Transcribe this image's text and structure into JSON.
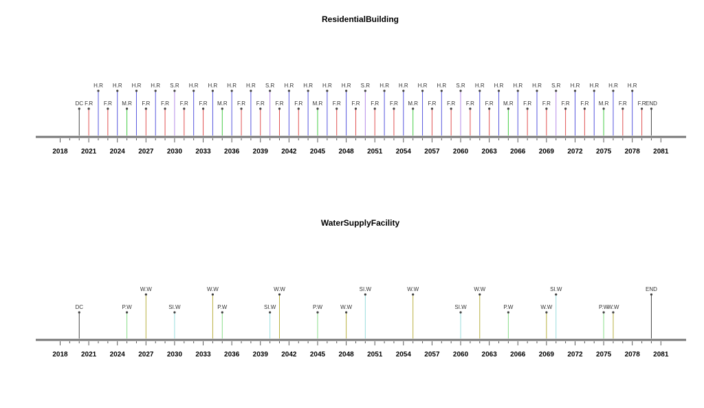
{
  "chart_data": [
    {
      "type": "timeline",
      "title": "ResidentialBuilding",
      "xlim": [
        2016,
        2083
      ],
      "tick_labels": [
        "2018",
        "2021",
        "2024",
        "2027",
        "2030",
        "2033",
        "2036",
        "2039",
        "2042",
        "2045",
        "2048",
        "2051",
        "2054",
        "2057",
        "2060",
        "2063",
        "2066",
        "2069",
        "2072",
        "2075",
        "2078",
        "2081"
      ],
      "events": [
        {
          "year": 2020,
          "label": "DC",
          "color": "#444444"
        },
        {
          "year": 2021,
          "label": "F.R",
          "color": "#e05050"
        },
        {
          "year": 2022,
          "label": "H.R",
          "color": "#5555dd"
        },
        {
          "year": 2023,
          "label": "F.R",
          "color": "#e05050"
        },
        {
          "year": 2024,
          "label": "H.R",
          "color": "#5555dd"
        },
        {
          "year": 2025,
          "label": "M.R",
          "color": "#44cc44"
        },
        {
          "year": 2026,
          "label": "H.R",
          "color": "#5555dd"
        },
        {
          "year": 2027,
          "label": "F.R",
          "color": "#e05050"
        },
        {
          "year": 2028,
          "label": "H.R",
          "color": "#5555dd"
        },
        {
          "year": 2029,
          "label": "F.R",
          "color": "#e05050"
        },
        {
          "year": 2030,
          "label": "S.R",
          "color": "#b48ae8"
        },
        {
          "year": 2031,
          "label": "F.R",
          "color": "#e05050"
        },
        {
          "year": 2032,
          "label": "H.R",
          "color": "#5555dd"
        },
        {
          "year": 2033,
          "label": "F.R",
          "color": "#e05050"
        },
        {
          "year": 2034,
          "label": "H.R",
          "color": "#5555dd"
        },
        {
          "year": 2035,
          "label": "M.R",
          "color": "#44cc44"
        },
        {
          "year": 2036,
          "label": "H.R",
          "color": "#5555dd"
        },
        {
          "year": 2037,
          "label": "F.R",
          "color": "#e05050"
        },
        {
          "year": 2038,
          "label": "H.R",
          "color": "#5555dd"
        },
        {
          "year": 2039,
          "label": "F.R",
          "color": "#e05050"
        },
        {
          "year": 2040,
          "label": "S.R",
          "color": "#b48ae8"
        },
        {
          "year": 2041,
          "label": "F.R",
          "color": "#e05050"
        },
        {
          "year": 2042,
          "label": "H.R",
          "color": "#5555dd"
        },
        {
          "year": 2043,
          "label": "F.R",
          "color": "#e05050"
        },
        {
          "year": 2044,
          "label": "H.R",
          "color": "#5555dd"
        },
        {
          "year": 2045,
          "label": "M.R",
          "color": "#44cc44"
        },
        {
          "year": 2046,
          "label": "H.R",
          "color": "#5555dd"
        },
        {
          "year": 2047,
          "label": "F.R",
          "color": "#e05050"
        },
        {
          "year": 2048,
          "label": "H.R",
          "color": "#5555dd"
        },
        {
          "year": 2049,
          "label": "F.R",
          "color": "#e05050"
        },
        {
          "year": 2050,
          "label": "S.R",
          "color": "#b48ae8"
        },
        {
          "year": 2051,
          "label": "F.R",
          "color": "#e05050"
        },
        {
          "year": 2052,
          "label": "H.R",
          "color": "#5555dd"
        },
        {
          "year": 2053,
          "label": "F.R",
          "color": "#e05050"
        },
        {
          "year": 2054,
          "label": "H.R",
          "color": "#5555dd"
        },
        {
          "year": 2055,
          "label": "M.R",
          "color": "#44cc44"
        },
        {
          "year": 2056,
          "label": "H.R",
          "color": "#5555dd"
        },
        {
          "year": 2057,
          "label": "F.R",
          "color": "#e05050"
        },
        {
          "year": 2058,
          "label": "H.R",
          "color": "#5555dd"
        },
        {
          "year": 2059,
          "label": "F.R",
          "color": "#e05050"
        },
        {
          "year": 2060,
          "label": "S.R",
          "color": "#b48ae8"
        },
        {
          "year": 2061,
          "label": "F.R",
          "color": "#e05050"
        },
        {
          "year": 2062,
          "label": "H.R",
          "color": "#5555dd"
        },
        {
          "year": 2063,
          "label": "F.R",
          "color": "#e05050"
        },
        {
          "year": 2064,
          "label": "H.R",
          "color": "#5555dd"
        },
        {
          "year": 2065,
          "label": "M.R",
          "color": "#44cc44"
        },
        {
          "year": 2066,
          "label": "H.R",
          "color": "#5555dd"
        },
        {
          "year": 2067,
          "label": "F.R",
          "color": "#e05050"
        },
        {
          "year": 2068,
          "label": "H.R",
          "color": "#5555dd"
        },
        {
          "year": 2069,
          "label": "F.R",
          "color": "#e05050"
        },
        {
          "year": 2070,
          "label": "S.R",
          "color": "#b48ae8"
        },
        {
          "year": 2071,
          "label": "F.R",
          "color": "#e05050"
        },
        {
          "year": 2072,
          "label": "H.R",
          "color": "#5555dd"
        },
        {
          "year": 2073,
          "label": "F.R",
          "color": "#e05050"
        },
        {
          "year": 2074,
          "label": "H.R",
          "color": "#5555dd"
        },
        {
          "year": 2075,
          "label": "M.R",
          "color": "#44cc44"
        },
        {
          "year": 2076,
          "label": "H.R",
          "color": "#5555dd"
        },
        {
          "year": 2077,
          "label": "F.R",
          "color": "#e05050"
        },
        {
          "year": 2078,
          "label": "H.R",
          "color": "#5555dd"
        },
        {
          "year": 2079,
          "label": "F.R",
          "color": "#e05050"
        },
        {
          "year": 2080,
          "label": "END",
          "color": "#444444"
        }
      ]
    },
    {
      "type": "timeline",
      "title": "WaterSupplyFacility",
      "xlim": [
        2016,
        2083
      ],
      "tick_labels": [
        "2018",
        "2021",
        "2024",
        "2027",
        "2030",
        "2033",
        "2036",
        "2039",
        "2042",
        "2045",
        "2048",
        "2051",
        "2054",
        "2057",
        "2060",
        "2063",
        "2066",
        "2069",
        "2072",
        "2075",
        "2078",
        "2081"
      ],
      "events": [
        {
          "year": 2020,
          "label": "DC",
          "color": "#444444"
        },
        {
          "year": 2025,
          "label": "P.W",
          "color": "#88dd88"
        },
        {
          "year": 2027,
          "label": "W.W",
          "color": "#b8b040"
        },
        {
          "year": 2030,
          "label": "SI.W",
          "color": "#99dddd"
        },
        {
          "year": 2034,
          "label": "W.W",
          "color": "#b8b040"
        },
        {
          "year": 2035,
          "label": "P.W",
          "color": "#88dd88"
        },
        {
          "year": 2040,
          "label": "SI.W",
          "color": "#99dddd"
        },
        {
          "year": 2041,
          "label": "W.W",
          "color": "#b8b040"
        },
        {
          "year": 2045,
          "label": "P.W",
          "color": "#88dd88"
        },
        {
          "year": 2048,
          "label": "W.W",
          "color": "#b8b040"
        },
        {
          "year": 2050,
          "label": "SI.W",
          "color": "#99dddd"
        },
        {
          "year": 2055,
          "label": "W.W",
          "color": "#b8b040"
        },
        {
          "year": 2060,
          "label": "SI.W",
          "color": "#99dddd"
        },
        {
          "year": 2062,
          "label": "W.W",
          "color": "#b8b040"
        },
        {
          "year": 2065,
          "label": "P.W",
          "color": "#88dd88"
        },
        {
          "year": 2069,
          "label": "W.W",
          "color": "#b8b040"
        },
        {
          "year": 2070,
          "label": "SI.W",
          "color": "#99dddd"
        },
        {
          "year": 2075,
          "label": "P.W",
          "color": "#88dd88"
        },
        {
          "year": 2076,
          "label": "W.W",
          "color": "#b8b040"
        },
        {
          "year": 2080,
          "label": "END",
          "color": "#444444"
        }
      ]
    }
  ]
}
